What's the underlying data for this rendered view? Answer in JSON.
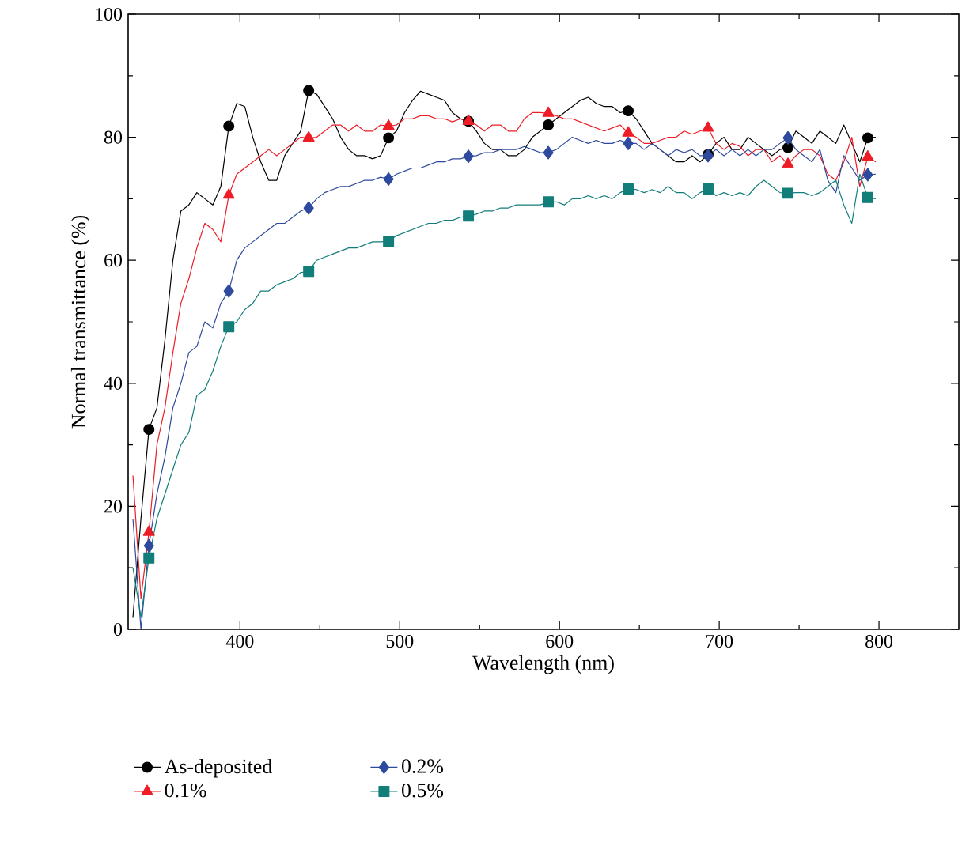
{
  "chart_data": {
    "type": "line",
    "xlabel": "Wavelength (nm)",
    "ylabel": "Normal transmittance (%)",
    "xlim": [
      330,
      850
    ],
    "ylim": [
      0,
      100
    ],
    "xticks": [
      400,
      500,
      600,
      700,
      800
    ],
    "yticks": [
      0,
      20,
      40,
      60,
      80,
      100
    ],
    "legend": "bottom",
    "x": [
      333,
      338,
      343,
      348,
      353,
      358,
      363,
      368,
      373,
      378,
      383,
      388,
      393,
      398,
      403,
      408,
      413,
      418,
      423,
      428,
      433,
      438,
      443,
      448,
      453,
      458,
      463,
      468,
      473,
      478,
      483,
      488,
      493,
      498,
      503,
      508,
      513,
      518,
      523,
      528,
      533,
      538,
      543,
      548,
      553,
      558,
      563,
      568,
      573,
      578,
      583,
      588,
      593,
      598,
      603,
      608,
      613,
      618,
      623,
      628,
      633,
      638,
      643,
      648,
      653,
      658,
      663,
      668,
      673,
      678,
      683,
      688,
      693,
      698,
      703,
      708,
      713,
      718,
      723,
      728,
      733,
      738,
      743,
      748,
      753,
      758,
      763,
      768,
      773,
      778,
      783,
      788,
      793,
      798
    ],
    "series": [
      {
        "color": "#000000",
        "values": [
          2,
          18,
          32.5,
          36,
          47,
          60,
          68,
          69,
          71,
          70,
          69,
          72,
          81.8,
          85.5,
          85,
          80,
          76,
          73,
          73,
          77,
          79,
          81,
          87.6,
          87,
          85,
          83,
          80,
          78,
          77,
          77,
          76.5,
          77,
          79.9,
          81,
          84,
          86,
          87.5,
          87,
          86.5,
          86,
          84,
          83,
          82.6,
          81,
          79,
          78,
          78,
          77,
          77,
          78,
          80,
          81,
          82,
          83,
          84,
          85,
          86,
          86.5,
          85.5,
          85,
          85,
          84,
          84.3,
          83,
          81,
          79,
          78,
          77,
          76,
          76,
          77,
          76,
          77.2,
          79,
          80,
          78,
          78,
          80,
          79,
          78,
          77,
          78,
          78.3,
          81,
          80,
          79,
          81,
          80,
          79,
          82,
          79,
          76,
          79.9,
          80
        ]
      },
      {
        "color": "#ee1c25",
        "values": [
          25,
          5,
          15.8,
          30,
          36,
          45,
          53,
          57,
          62,
          66,
          65,
          63,
          70.6,
          74,
          75,
          76,
          77,
          78,
          77,
          78,
          79,
          80,
          79.9,
          80,
          81,
          82,
          82,
          81,
          82,
          81,
          81,
          82,
          81.8,
          82,
          83,
          83,
          83.5,
          83.5,
          83,
          83,
          82.5,
          83,
          82.6,
          82,
          81,
          82,
          82,
          81,
          81,
          83,
          84,
          84,
          83.9,
          83.5,
          83,
          83,
          82.5,
          82,
          81.5,
          81,
          81.5,
          82,
          80.7,
          80,
          79,
          79,
          79.5,
          80,
          80,
          81,
          80.5,
          81,
          81.5,
          79,
          78,
          79,
          78.5,
          77,
          78,
          78,
          76,
          77,
          75.6,
          77,
          78,
          78,
          77,
          74,
          73,
          76,
          80,
          72,
          76.8,
          76
        ]
      },
      {
        "color": "#2e4a9e",
        "values": [
          18,
          0,
          13.6,
          22,
          28,
          36,
          40,
          45,
          46,
          50,
          49,
          53,
          55,
          60,
          62,
          63,
          64,
          65,
          66,
          66,
          67,
          68,
          68.5,
          70,
          71,
          71.5,
          72,
          72,
          72.5,
          73,
          73,
          73.5,
          73.2,
          74,
          74.5,
          75,
          75,
          75.5,
          76,
          76,
          76.5,
          76.5,
          76.9,
          77,
          77.5,
          77.5,
          78,
          78,
          78,
          78.5,
          78,
          77.5,
          77.5,
          78,
          79,
          80,
          79.5,
          79,
          79.5,
          79,
          79,
          79.5,
          79,
          79,
          78,
          79,
          78,
          77,
          78,
          77.5,
          78,
          77,
          77,
          78,
          77,
          78,
          77,
          78,
          77,
          78,
          78,
          79,
          79.9,
          78,
          77,
          76,
          78,
          73,
          71,
          77,
          75,
          73,
          73.9,
          74
        ]
      },
      {
        "color": "#127e7a",
        "values": [
          10,
          2,
          11.6,
          18,
          22,
          26,
          30,
          32,
          38,
          39,
          42,
          46,
          49.2,
          50,
          52,
          53,
          55,
          55,
          56,
          56.5,
          57,
          58,
          58.2,
          60,
          60.5,
          61,
          61.5,
          62,
          62,
          62.5,
          63,
          63,
          63.1,
          64,
          64.5,
          65,
          65.5,
          66,
          66,
          66.5,
          66.5,
          67,
          67.2,
          67.5,
          68,
          68,
          68.5,
          68.5,
          69,
          69,
          69,
          69,
          69.5,
          69.5,
          69,
          70,
          70,
          70.5,
          70,
          70.5,
          70,
          71,
          71.6,
          71.5,
          71,
          71.5,
          71,
          72,
          71,
          71,
          70,
          71,
          71.6,
          70.5,
          71,
          70.5,
          71,
          70.5,
          72,
          73,
          72,
          71,
          70.9,
          71,
          71,
          70.5,
          71,
          72,
          73,
          69,
          66,
          74,
          70.2,
          70
        ]
      },
      {
        "type": "scatter",
        "name": "As-deposited",
        "color": "#000000",
        "marker": "circle",
        "x": [
          343,
          393,
          443,
          493,
          543,
          593,
          643,
          693,
          743,
          793
        ],
        "values": [
          32.5,
          81.8,
          87.6,
          79.9,
          82.6,
          82,
          84.3,
          77.2,
          78.3,
          79.9
        ]
      },
      {
        "type": "scatter",
        "name": "0.1%",
        "color": "#ee1c25",
        "marker": "triangle",
        "x": [
          343,
          393,
          443,
          493,
          543,
          593,
          643,
          693,
          743,
          793
        ],
        "values": [
          15.8,
          70.6,
          79.9,
          81.8,
          82.6,
          83.9,
          80.7,
          81.5,
          75.6,
          76.8
        ]
      },
      {
        "type": "scatter",
        "name": "0.2%",
        "color": "#2e4a9e",
        "marker": "diamond",
        "x": [
          343,
          393,
          443,
          493,
          543,
          593,
          643,
          693,
          743,
          793
        ],
        "values": [
          13.6,
          55,
          68.5,
          73.2,
          76.9,
          77.5,
          79,
          77,
          79.9,
          73.9
        ]
      },
      {
        "type": "scatter",
        "name": "0.5%",
        "color": "#127e7a",
        "marker": "square",
        "x": [
          343,
          393,
          443,
          493,
          543,
          593,
          643,
          693,
          743,
          793
        ],
        "values": [
          11.6,
          49.2,
          58.2,
          63.1,
          67.2,
          69.5,
          71.6,
          71.6,
          70.9,
          70.2
        ]
      }
    ]
  }
}
